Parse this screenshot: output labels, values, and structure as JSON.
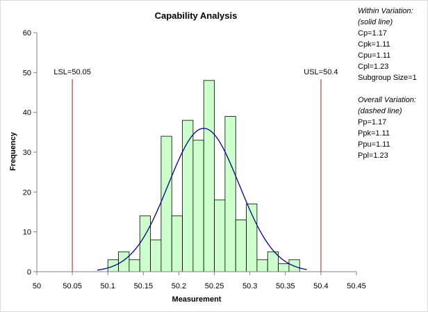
{
  "chart_data": {
    "type": "bar",
    "title": "Capability Analysis",
    "xlabel": "Measurement",
    "ylabel": "Frequency",
    "xlim": [
      50,
      50.45
    ],
    "ylim": [
      0,
      60
    ],
    "x_ticks": [
      "50",
      "50.05",
      "50.1",
      "50.15",
      "50.2",
      "50.25",
      "50.3",
      "50.35",
      "50.4",
      "50.45"
    ],
    "y_ticks": [
      "0",
      "10",
      "20",
      "30",
      "40",
      "50",
      "60"
    ],
    "bin_width": 0.015,
    "bins": [
      {
        "x": 50.1,
        "count": 3
      },
      {
        "x": 50.115,
        "count": 5
      },
      {
        "x": 50.13,
        "count": 3
      },
      {
        "x": 50.145,
        "count": 14
      },
      {
        "x": 50.16,
        "count": 8
      },
      {
        "x": 50.175,
        "count": 34
      },
      {
        "x": 50.19,
        "count": 14
      },
      {
        "x": 50.205,
        "count": 38
      },
      {
        "x": 50.22,
        "count": 33
      },
      {
        "x": 50.235,
        "count": 48
      },
      {
        "x": 50.25,
        "count": 18
      },
      {
        "x": 50.265,
        "count": 39
      },
      {
        "x": 50.28,
        "count": 13
      },
      {
        "x": 50.295,
        "count": 17
      },
      {
        "x": 50.31,
        "count": 3
      },
      {
        "x": 50.325,
        "count": 5
      },
      {
        "x": 50.34,
        "count": 2
      },
      {
        "x": 50.355,
        "count": 3
      }
    ],
    "normal_curve": {
      "mean": 50.235,
      "peak": 36,
      "sd": 0.05,
      "x_range": [
        50.085,
        50.38
      ]
    },
    "limits": [
      {
        "label": "LSL=50.05",
        "value": 50.05
      },
      {
        "label": "USL=50.4",
        "value": 50.4
      }
    ],
    "colors": {
      "bar_fill": "#ccffcc",
      "bar_stroke": "#000000",
      "curve": "#00008b",
      "limit_line": "#c0504d",
      "axis": "#808080"
    }
  },
  "stats": {
    "within": {
      "heading": "Within Variation:",
      "subheading": "(solid line)",
      "lines": [
        "Cp=1.17",
        "Cpk=1.11",
        "Cpu=1.11",
        "Cpl=1.23",
        "Subgroup Size=1"
      ]
    },
    "overall": {
      "heading": "Overall Variation:",
      "subheading": "(dashed line)",
      "lines": [
        "Pp=1.17",
        "Ppk=1.11",
        "Ppu=1.11",
        "Ppl=1.23"
      ]
    }
  }
}
